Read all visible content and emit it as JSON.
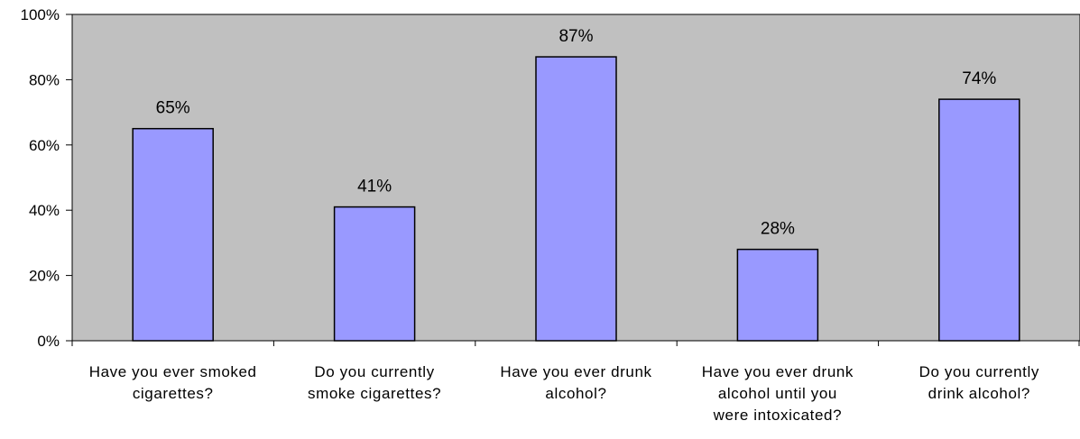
{
  "chart_data": {
    "type": "bar",
    "title": "",
    "xlabel": "",
    "ylabel": "",
    "categories": [
      [
        "Have you ever smoked",
        "cigarettes?"
      ],
      [
        "Do you currently",
        "smoke cigarettes?"
      ],
      [
        "Have you ever drunk",
        "alcohol?"
      ],
      [
        "Have you ever drunk",
        "alcohol until you",
        "were intoxicated?"
      ],
      [
        "Do you currently",
        "drink alcohol?"
      ]
    ],
    "values": [
      65,
      41,
      87,
      28,
      74
    ],
    "data_labels": [
      "65%",
      "41%",
      "87%",
      "28%",
      "74%"
    ],
    "ylim": [
      0,
      100
    ],
    "yticks": [
      0,
      20,
      40,
      60,
      80,
      100
    ],
    "ytick_labels": [
      "0%",
      "20%",
      "40%",
      "60%",
      "80%",
      "100%"
    ],
    "grid": false,
    "legend": "none",
    "colors": {
      "plot_background": "#c0c0c0",
      "bar_fill": "#9999ff",
      "bar_stroke": "#000000",
      "axis": "#000000"
    }
  }
}
